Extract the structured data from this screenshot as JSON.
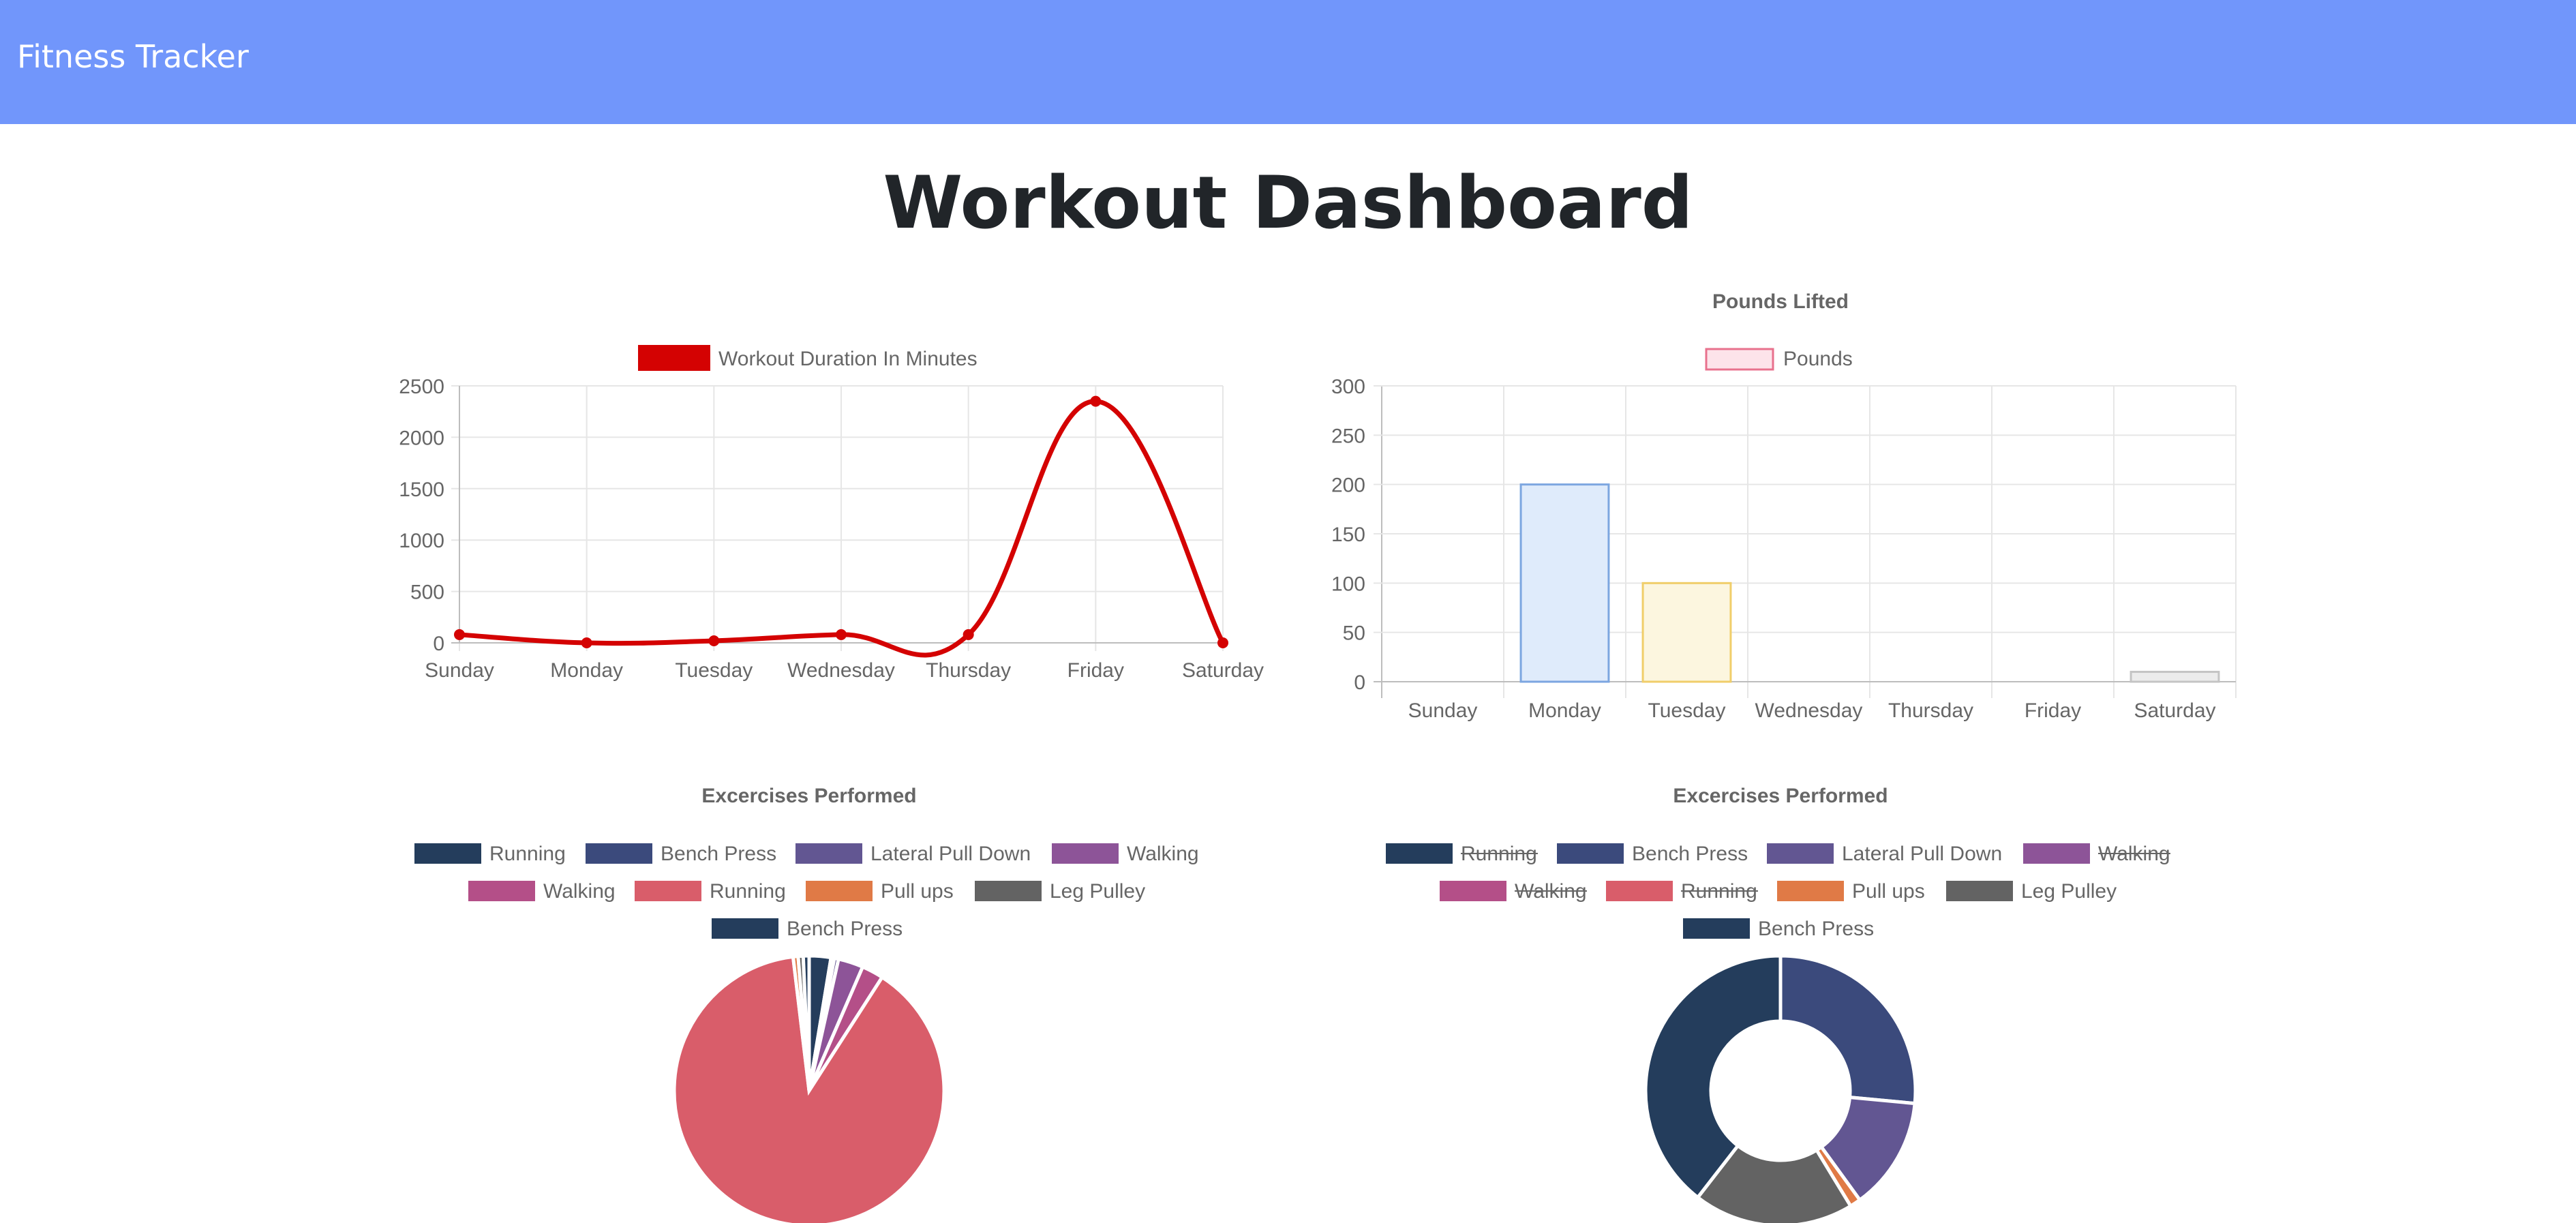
{
  "navbar": {
    "brand": "Fitness Tracker"
  },
  "page": {
    "title": "Workout Dashboard"
  },
  "colors": {
    "navbar": "#7196fb",
    "line": "#d40202",
    "grid": "#e6e6e6",
    "axis": "#bdbdbd",
    "tick_text": "#666666"
  },
  "chart_data": [
    {
      "id": "duration",
      "type": "line",
      "title": "",
      "categories": [
        "Sunday",
        "Monday",
        "Tuesday",
        "Wednesday",
        "Thursday",
        "Friday",
        "Saturday"
      ],
      "series": [
        {
          "name": "Workout Duration In Minutes",
          "values": [
            80,
            0,
            20,
            80,
            80,
            2350,
            0
          ],
          "color": "#d40202"
        }
      ],
      "y_ticks": [
        "0",
        "500",
        "1000",
        "1500",
        "2000",
        "2500"
      ],
      "ylim": [
        0,
        2500
      ],
      "legend": "top-center"
    },
    {
      "id": "pounds",
      "type": "bar",
      "title": "Pounds Lifted",
      "categories": [
        "Sunday",
        "Monday",
        "Tuesday",
        "Wednesday",
        "Thursday",
        "Friday",
        "Saturday"
      ],
      "series": [
        {
          "name": "Pounds",
          "values": [
            0,
            200,
            100,
            0,
            0,
            0,
            10
          ],
          "fills": [
            "#fde3ea",
            "#dfebfb",
            "#fcf6df",
            "#e0f2f2",
            "#ebe3fb",
            "#fdeedf",
            "#ececec"
          ],
          "strokes": [
            "#f0849c",
            "#7ca6e0",
            "#f0ce6a",
            "#6fc4c4",
            "#a58cf0",
            "#f0b06f",
            "#c4c4c4"
          ]
        }
      ],
      "legend_fill": "#fde3ea",
      "legend_stroke": "#e8718d",
      "y_ticks": [
        "0",
        "50",
        "100",
        "150",
        "200",
        "250",
        "300"
      ],
      "ylim": [
        0,
        300
      ],
      "legend": "top-center"
    },
    {
      "id": "exercises-pie",
      "type": "pie",
      "title": "Excercises Performed",
      "legend": [
        {
          "label": "Running",
          "color": "#243d5c",
          "hidden": false
        },
        {
          "label": "Bench Press",
          "color": "#3b4a7c",
          "hidden": false
        },
        {
          "label": "Lateral Pull Down",
          "color": "#625692",
          "hidden": false
        },
        {
          "label": "Walking",
          "color": "#8d5498",
          "hidden": false
        },
        {
          "label": "Walking",
          "color": "#b44f88",
          "hidden": false
        },
        {
          "label": "Running",
          "color": "#d95d6a",
          "hidden": false
        },
        {
          "label": "Pull ups",
          "color": "#e07a46",
          "hidden": false
        },
        {
          "label": "Leg Pulley",
          "color": "#636363",
          "hidden": false
        },
        {
          "label": "Bench Press",
          "color": "#243d5c",
          "hidden": false
        }
      ],
      "slices": [
        {
          "label": "Running",
          "value": 2.6,
          "color": "#243d5c"
        },
        {
          "label": "Bench Press",
          "value": 0.4,
          "color": "#3b4a7c"
        },
        {
          "label": "Lateral Pull Down",
          "value": 0.5,
          "color": "#625692"
        },
        {
          "label": "Walking",
          "value": 3.0,
          "color": "#8d5498"
        },
        {
          "label": "Walking",
          "value": 2.6,
          "color": "#b44f88"
        },
        {
          "label": "Running",
          "value": 89.0,
          "color": "#d95d6a"
        },
        {
          "label": "Pull ups",
          "value": 0.6,
          "color": "#e07a46"
        },
        {
          "label": "Leg Pulley",
          "value": 0.6,
          "color": "#636363"
        },
        {
          "label": "Bench Press",
          "value": 0.7,
          "color": "#243d5c"
        }
      ]
    },
    {
      "id": "exercises-doughnut",
      "type": "pie",
      "title": "Excercises Performed",
      "legend": [
        {
          "label": "Running",
          "color": "#243d5c",
          "hidden": true
        },
        {
          "label": "Bench Press",
          "color": "#3b4a7c",
          "hidden": false
        },
        {
          "label": "Lateral Pull Down",
          "color": "#625692",
          "hidden": false
        },
        {
          "label": "Walking",
          "color": "#8d5498",
          "hidden": true
        },
        {
          "label": "Walking",
          "color": "#b44f88",
          "hidden": true
        },
        {
          "label": "Running",
          "color": "#d95d6a",
          "hidden": true
        },
        {
          "label": "Pull ups",
          "color": "#e07a46",
          "hidden": false
        },
        {
          "label": "Leg Pulley",
          "color": "#636363",
          "hidden": false
        },
        {
          "label": "Bench Press",
          "color": "#243d5c",
          "hidden": false
        }
      ],
      "slices": [
        {
          "label": "Bench Press",
          "value": 26.5,
          "color": "#3b4a7c"
        },
        {
          "label": "Lateral Pull Down",
          "value": 13.5,
          "color": "#625692"
        },
        {
          "label": "Pull ups",
          "value": 1.3,
          "color": "#e07a46"
        },
        {
          "label": "Leg Pulley",
          "value": 19.2,
          "color": "#636363"
        },
        {
          "label": "Bench Press",
          "value": 39.5,
          "color": "#243d5c"
        }
      ]
    }
  ]
}
